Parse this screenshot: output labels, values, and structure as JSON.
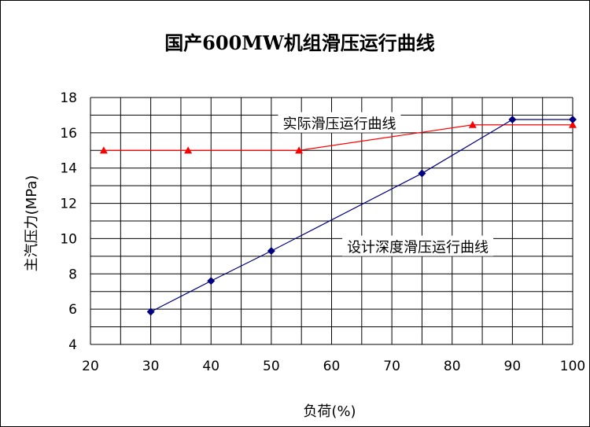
{
  "chart_data": {
    "type": "line",
    "title": "国产600MW机组滑压运行曲线",
    "xlabel": "负荷(%)",
    "ylabel": "主汽压力(MPa)",
    "xlim": [
      20,
      100
    ],
    "ylim": [
      4,
      18
    ],
    "x_ticks": [
      20,
      30,
      40,
      50,
      60,
      70,
      80,
      90,
      100
    ],
    "y_ticks": [
      4,
      6,
      8,
      10,
      12,
      14,
      16,
      18
    ],
    "grid": true,
    "series": [
      {
        "name": "实际滑压运行曲线",
        "color": "#ff0000",
        "marker": "triangle",
        "points": [
          [
            22.2,
            15.0
          ],
          [
            36.2,
            15.0
          ],
          [
            54.6,
            15.0
          ],
          [
            83.4,
            16.45
          ],
          [
            100,
            16.45
          ]
        ]
      },
      {
        "name": "设计深度滑压运行曲线",
        "color": "#000080",
        "marker": "diamond",
        "points": [
          [
            30,
            5.85
          ],
          [
            40,
            7.6
          ],
          [
            50,
            9.3
          ],
          [
            75,
            13.7
          ],
          [
            90,
            16.75
          ],
          [
            100,
            16.75
          ]
        ]
      }
    ],
    "annotations": [
      {
        "text": "实际滑压运行曲线",
        "at": [
          61.3,
          16.5
        ]
      },
      {
        "text": "设计深度滑压运行曲线",
        "at": [
          74.3,
          9.5
        ]
      }
    ]
  }
}
